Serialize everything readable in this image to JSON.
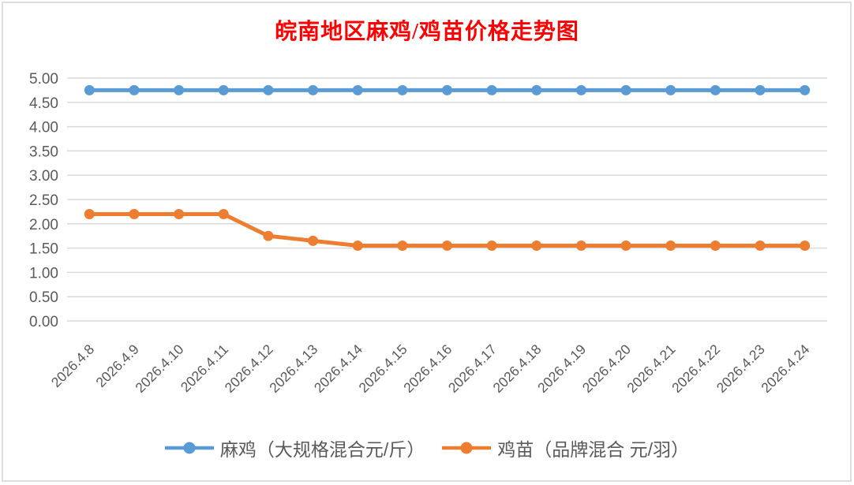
{
  "window": {
    "background": "#FFFFFF",
    "border_color": "#DEDEDE"
  },
  "chart_data": {
    "type": "line",
    "title": "皖南地区麻鸡/鸡苗价格走势图",
    "title_color": "#FF0000",
    "categories": [
      "2026.4.8",
      "2026.4.9",
      "2026.4.10",
      "2026.4.11",
      "2026.4.12",
      "2026.4.13",
      "2026.4.14",
      "2026.4.15",
      "2026.4.16",
      "2026.4.17",
      "2026.4.18",
      "2026.4.19",
      "2026.4.20",
      "2026.4.21",
      "2026.4.22",
      "2026.4.23",
      "2026.4.24"
    ],
    "series": [
      {
        "name": "麻鸡（大规格混合元/斤）",
        "color": "#5B9BD5",
        "values": [
          4.75,
          4.75,
          4.75,
          4.75,
          4.75,
          4.75,
          4.75,
          4.75,
          4.75,
          4.75,
          4.75,
          4.75,
          4.75,
          4.75,
          4.75,
          4.75,
          4.75
        ]
      },
      {
        "name": "鸡苗（品牌混合 元/羽）",
        "color": "#ED7D31",
        "values": [
          2.2,
          2.2,
          2.2,
          2.2,
          1.75,
          1.65,
          1.55,
          1.55,
          1.55,
          1.55,
          1.55,
          1.55,
          1.55,
          1.55,
          1.55,
          1.55,
          1.55
        ]
      }
    ],
    "ylim": [
      0,
      5
    ],
    "yticks": [
      "5.00",
      "4.50",
      "4.00",
      "3.50",
      "3.00",
      "2.50",
      "2.00",
      "1.50",
      "1.00",
      "0.50",
      "0.00"
    ],
    "grid": true,
    "gridline_color": "#D9D9D9",
    "axis_text_color": "#595959",
    "x_label_rotation": -45,
    "legend_position": "bottom"
  }
}
